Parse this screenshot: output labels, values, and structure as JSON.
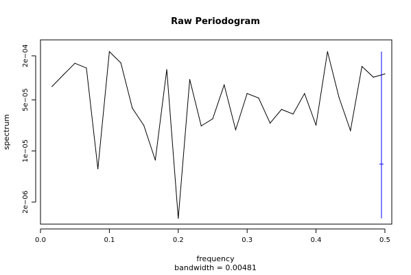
{
  "chart_data": {
    "type": "line",
    "title": "Raw Periodogram",
    "xlabel": "frequency",
    "ylabel": "spectrum",
    "subtitle": "bandwidth = 0.00481",
    "ylog": true,
    "xlim": [
      0.0,
      0.51
    ],
    "ylim": [
      1e-06,
      0.00033
    ],
    "x_ticks": [
      0.0,
      0.1,
      0.2,
      0.3,
      0.4,
      0.5
    ],
    "x_tick_labels": [
      "0.0",
      "0.1",
      "0.2",
      "0.3",
      "0.4",
      "0.5"
    ],
    "y_ticks": [
      2e-06,
      1e-05,
      5e-05,
      0.0002
    ],
    "y_tick_labels": [
      "2e−06",
      "1e−05",
      "5e−05",
      "2e−04"
    ],
    "series": [
      {
        "color": "#000000",
        "x": [
          0.01667,
          0.03333,
          0.05,
          0.06667,
          0.08333,
          0.1,
          0.11667,
          0.13333,
          0.15,
          0.16667,
          0.18333,
          0.2,
          0.21667,
          0.23333,
          0.25,
          0.26667,
          0.28333,
          0.3,
          0.31667,
          0.33333,
          0.35,
          0.36667,
          0.38333,
          0.4,
          0.41667,
          0.43333,
          0.45,
          0.46667,
          0.48333,
          0.5
        ],
        "values": [
          7.6e-05,
          0.00011,
          0.000158,
          0.000136,
          5.7e-06,
          0.000228,
          0.00016,
          3.85e-05,
          2.24e-05,
          7.5e-06,
          0.00013,
          1.2e-06,
          9.5e-05,
          2.2e-05,
          2.75e-05,
          8e-05,
          1.95e-05,
          6.1e-05,
          5.3e-05,
          2.4e-05,
          3.7e-05,
          3.2e-05,
          6.1e-05,
          2.25e-05,
          0.000228,
          5.4e-05,
          1.9e-05,
          0.000143,
          0.000102,
          0.000113
        ]
      }
    ],
    "ci_bar": {
      "color": "#0000ff",
      "x": 0.495,
      "lower": 1.2e-06,
      "upper": 0.000228,
      "center": 6.6e-06
    }
  }
}
